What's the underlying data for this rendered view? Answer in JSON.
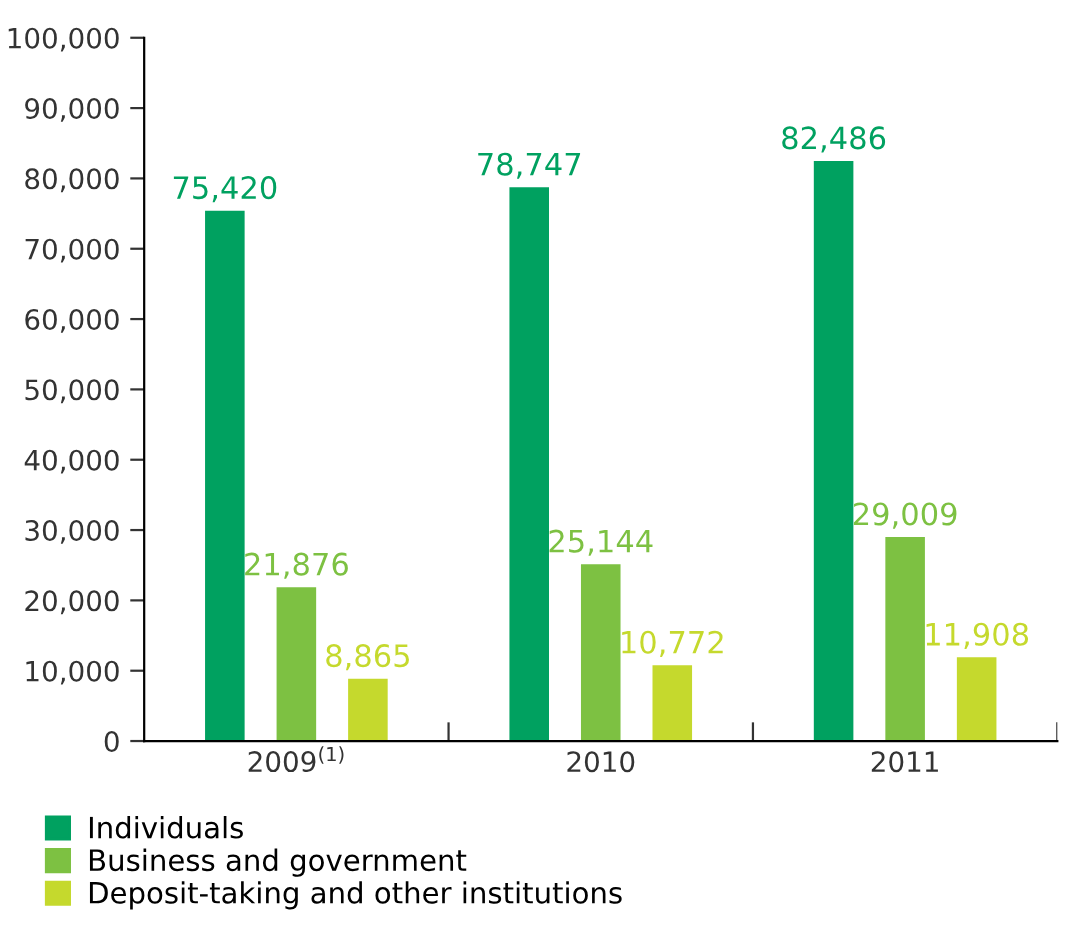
{
  "chart_data": {
    "type": "bar",
    "categories": [
      "2009$^{(1)}$",
      "2010",
      "2011"
    ],
    "series": [
      {
        "name": "Individuals",
        "color": "#00a160",
        "values": [
          75420,
          78747,
          82486
        ],
        "value_labels": [
          "75,420",
          "78,747",
          "82,486"
        ]
      },
      {
        "name": "Business and government",
        "color": "#7dc142",
        "values": [
          21876,
          25144,
          29009
        ],
        "value_labels": [
          "21,876",
          "25,144",
          "29,009"
        ]
      },
      {
        "name": "Deposit-taking and other institutions",
        "color": "#c5d92d",
        "values": [
          8865,
          10772,
          11908
        ],
        "value_labels": [
          "8,865",
          "10,772",
          "11,908"
        ]
      }
    ],
    "ylim": [
      0,
      100000
    ],
    "yticks": [
      0,
      {
        "value": 10000,
        "label": "10,000"
      },
      {
        "value": 20000,
        "label": "20,000"
      },
      {
        "value": 30000,
        "label": "30,000"
      },
      {
        "value": 40000,
        "label": "40,000"
      },
      {
        "value": 50000,
        "label": "50,000"
      },
      {
        "value": 60000,
        "label": "60,000"
      },
      {
        "value": 70000,
        "label": "70,000"
      },
      {
        "value": 80000,
        "label": "80,000"
      },
      {
        "value": 90000,
        "label": "90,000"
      },
      {
        "value": 100000,
        "label": "100,000"
      }
    ],
    "legend": "bottom",
    "grid": false
  }
}
